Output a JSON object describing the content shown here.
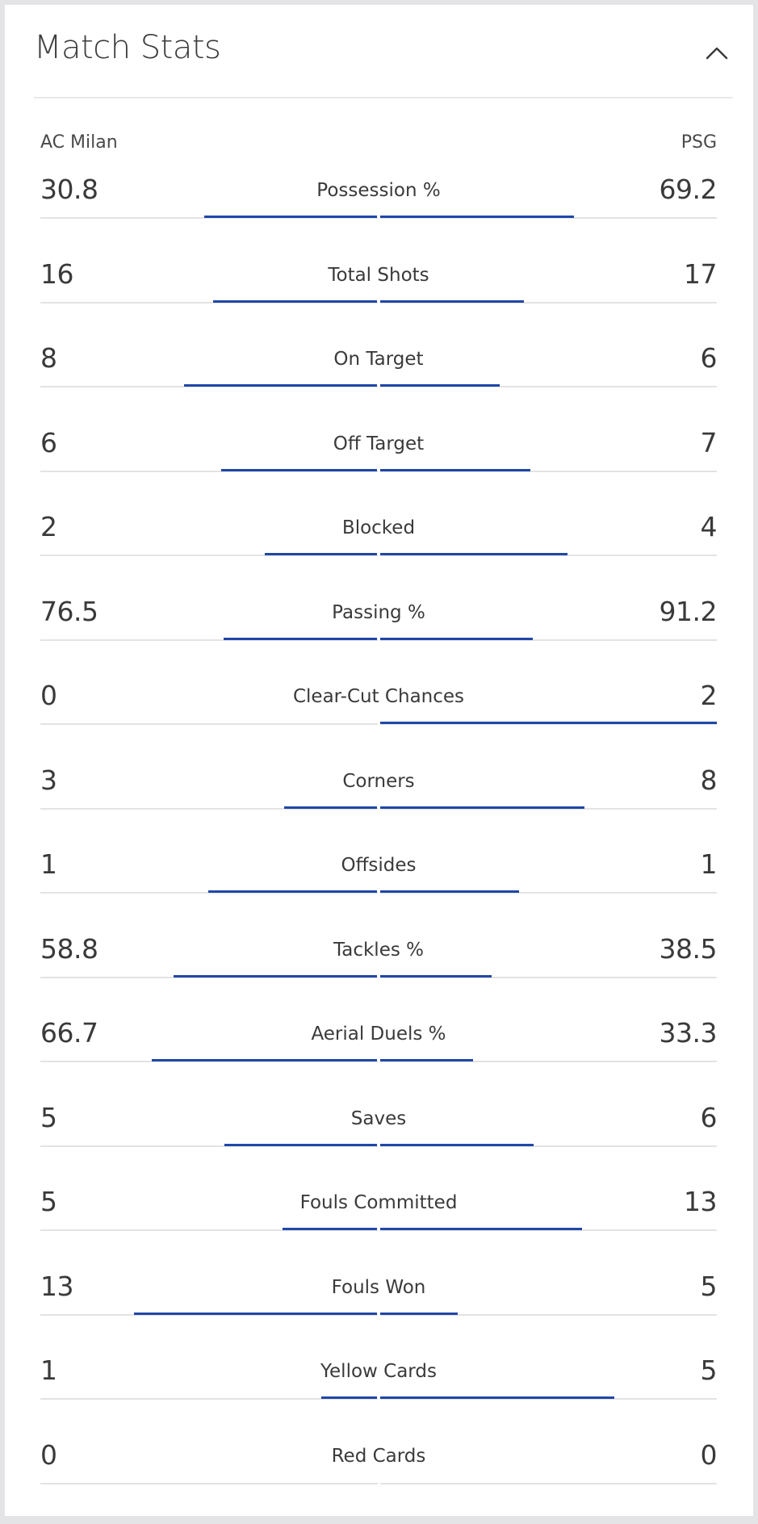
{
  "header": {
    "title": "Match Stats",
    "collapse_icon": "chevron-up-icon"
  },
  "teams": {
    "home": "AC Milan",
    "away": "PSG"
  },
  "colors": {
    "bar": "#2047a8",
    "track": "#e3e3e3"
  },
  "stats": [
    {
      "label": "Possession %",
      "home": "30.8",
      "away": "69.2",
      "home_bar": 0.513,
      "away_bar": 0.575
    },
    {
      "label": "Total Shots",
      "home": "16",
      "away": "17",
      "home_bar": 0.485,
      "away_bar": 0.427
    },
    {
      "label": "On Target",
      "home": "8",
      "away": "6",
      "home_bar": 0.571,
      "away_bar": 0.355
    },
    {
      "label": "Off Target",
      "home": "6",
      "away": "7",
      "home_bar": 0.461,
      "away_bar": 0.446
    },
    {
      "label": "Blocked",
      "home": "2",
      "away": "4",
      "home_bar": 0.332,
      "away_bar": 0.554
    },
    {
      "label": "Passing %",
      "home": "76.5",
      "away": "91.2",
      "home_bar": 0.455,
      "away_bar": 0.451
    },
    {
      "label": "Clear-Cut Chances",
      "home": "0",
      "away": "2",
      "home_bar": 0,
      "away_bar": 0.998
    },
    {
      "label": "Corners",
      "home": "3",
      "away": "8",
      "home_bar": 0.275,
      "away_bar": 0.605
    },
    {
      "label": "Offsides",
      "home": "1",
      "away": "1",
      "home_bar": 0.501,
      "away_bar": 0.412
    },
    {
      "label": "Tackles %",
      "home": "58.8",
      "away": "38.5",
      "home_bar": 0.602,
      "away_bar": 0.331
    },
    {
      "label": "Aerial Duels %",
      "home": "66.7",
      "away": "33.3",
      "home_bar": 0.668,
      "away_bar": 0.274
    },
    {
      "label": "Saves",
      "home": "5",
      "away": "6",
      "home_bar": 0.452,
      "away_bar": 0.454
    },
    {
      "label": "Fouls Committed",
      "home": "5",
      "away": "13",
      "home_bar": 0.281,
      "away_bar": 0.599
    },
    {
      "label": "Fouls Won",
      "home": "13",
      "away": "5",
      "home_bar": 0.72,
      "away_bar": 0.229
    },
    {
      "label": "Yellow Cards",
      "home": "1",
      "away": "5",
      "home_bar": 0.165,
      "away_bar": 0.693
    },
    {
      "label": "Red Cards",
      "home": "0",
      "away": "0",
      "home_bar": 0,
      "away_bar": 0
    }
  ]
}
